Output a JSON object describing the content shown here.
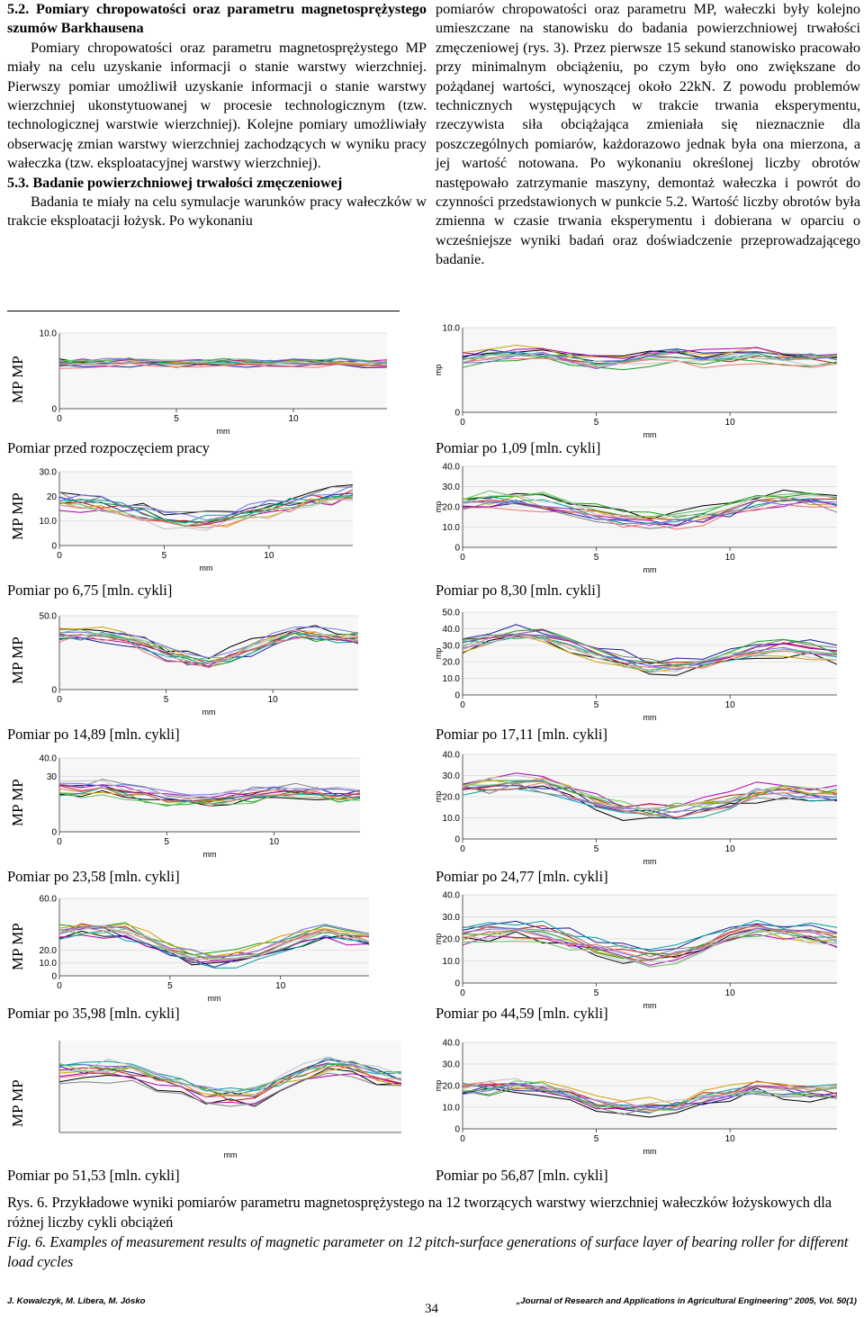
{
  "section_heading": "5.2. Pomiary chropowatości oraz parametru magnetosprężystego szumów Barkhausena",
  "left_paragraph_1": "Pomiary chropowatości oraz parametru magnetosprężystego MP miały na celu uzyskanie informacji o stanie warstwy wierzchniej. Pierwszy pomiar umożliwił uzyskanie informacji o stanie warstwy wierzchniej ukonstytuowanej w procesie technologicznym (tzw. technologicznej warstwie wierzchniej). Kolejne pomiary umożliwiały obserwację zmian warstwy wierzchniej zachodzących w wyniku pracy wałeczka (tzw. eksploatacyjnej warstwy wierzchniej).",
  "subsection_heading": "5.3. Badanie powierzchniowej trwałości zmęczeniowej",
  "left_paragraph_2": "Badania te miały na celu symulacje warunków pracy wałeczków w trakcie eksploatacji łożysk. Po wykonaniu",
  "right_paragraph": "pomiarów chropowatości oraz parametru MP, wałeczki były kolejno umieszczane na stanowisku do badania powierzchniowej trwałości zmęczeniowej (rys. 3). Przez pierwsze 15 sekund stanowisko pracowało przy minimalnym obciążeniu, po czym było ono zwiększane do pożądanej wartości, wynoszącej około 22kN. Z powodu problemów technicznych występujących w trakcie trwania eksperymentu, rzeczywista siła obciążająca zmieniała się nieznacznie dla poszczególnych pomiarów, każdorazowo jednak była ona mierzona, a jej wartość notowana. Po wykonaniu określonej liczby obrotów następowało zatrzymanie maszyny, demontaż wałeczka i powrót do czynności przedstawionych w punkcie 5.2. Wartość liczby obrotów była zmienna w czasie trwania eksperymentu i dobierana w oparciu o wcześniejsze wyniki badań oraz doświadczenie przeprowadzającego badanie.",
  "mp_label": "MP",
  "axis_xlabel": "mm",
  "axis_ylabel": "mp",
  "charts": [
    {
      "caption": "Pomiar przed rozpoczęciem pracy",
      "ymax": 10,
      "yticks": [
        "10.0",
        "0"
      ],
      "xticks": [
        "0",
        "5",
        "10"
      ],
      "mp_left": "MP MP"
    },
    {
      "caption": "Pomiar po 1,09 [mln. cykli]",
      "ymax": 10,
      "yticks": [
        "10.0",
        "0"
      ],
      "xticks": [
        "0",
        "5",
        "10"
      ],
      "mp_left": ""
    },
    {
      "caption": "Pomiar po 6,75 [mln. cykli]",
      "ymax": 30,
      "yticks": [
        "30.0",
        "20",
        "10.0",
        "0"
      ],
      "xticks": [
        "0",
        "5",
        "10"
      ],
      "mp_left": "MP MP"
    },
    {
      "caption": "Pomiar po 8,30 [mln. cykli]",
      "ymax": 40,
      "yticks": [
        "40.0",
        "30.0",
        "20.0",
        "10.0",
        "0"
      ],
      "xticks": [
        "0",
        "5",
        "10"
      ],
      "mp_left": ""
    },
    {
      "caption": "Pomiar po 14,89 [mln. cykli]",
      "ymax": 50,
      "yticks": [
        "50.0",
        "0"
      ],
      "xticks": [
        "0",
        "5",
        "10"
      ],
      "mp_left": "MP MP"
    },
    {
      "caption": "Pomiar po 17,11 [mln. cykli]",
      "ymax": 50,
      "yticks": [
        "50.0",
        "40.0",
        "30.0",
        "20.0",
        "10.0",
        "0"
      ],
      "xticks": [
        "0",
        "5",
        "10"
      ],
      "mp_left": ""
    },
    {
      "caption": "Pomiar po 23,58 [mln. cykli]",
      "ymax": 40,
      "yticks": [
        "40.0",
        "30",
        "0"
      ],
      "xticks": [
        "0",
        "5",
        "10"
      ],
      "mp_left": "MP MP"
    },
    {
      "caption": "Pomiar po 24,77 [mln. cykli]",
      "ymax": 40,
      "yticks": [
        "40.0",
        "30.0",
        "20.0",
        "10.0",
        "0"
      ],
      "xticks": [
        "0",
        "5",
        "10"
      ],
      "mp_left": ""
    },
    {
      "caption": "Pomiar po 35,98  [mln. cykli]",
      "ymax": 60,
      "yticks": [
        "60.0",
        "20.0",
        "10.0",
        "0"
      ],
      "xticks": [
        "0",
        "5",
        "10"
      ],
      "mp_left": "MP MP"
    },
    {
      "caption": "Pomiar po 44,59 [mln. cykli]",
      "ymax": 40,
      "yticks": [
        "40.0",
        "30.0",
        "20.0",
        "10.0",
        "0"
      ],
      "xticks": [
        "0",
        "5",
        "10"
      ],
      "mp_left": ""
    },
    {
      "caption": "Pomiar po 51,53 [mln. cykli]",
      "ymax": 40,
      "yticks": [],
      "xticks": [],
      "mp_left": "MP MP"
    },
    {
      "caption": "Pomiar po 56,87 [mln. cykli]",
      "ymax": 40,
      "yticks": [
        "40.0",
        "30.0",
        "20.0",
        "10.0",
        "0"
      ],
      "xticks": [
        "0",
        "5",
        "10"
      ],
      "mp_left": ""
    }
  ],
  "chart_data": [
    {
      "type": "line",
      "title": "Pomiar przed rozpoczęciem pracy",
      "xlabel": "mm",
      "ylabel": "mp",
      "ylim": [
        0,
        10
      ],
      "xlim": [
        0,
        14
      ],
      "x": [
        0,
        1,
        2,
        3,
        4,
        5,
        6,
        7,
        8,
        9,
        10,
        11,
        12,
        13,
        14
      ],
      "series_count": 12,
      "base": [
        6.0,
        6.0,
        6.1,
        6.1,
        6.0,
        6.0,
        6.0,
        6.1,
        6.0,
        6.0,
        6.0,
        6.1,
        6.1,
        6.0,
        6.0
      ],
      "spread": 0.6
    },
    {
      "type": "line",
      "title": "Pomiar po 1,09 [mln. cykli]",
      "xlabel": "mm",
      "ylabel": "mp",
      "ylim": [
        0,
        10
      ],
      "xlim": [
        0,
        14
      ],
      "x": [
        0,
        1,
        2,
        3,
        4,
        5,
        6,
        7,
        8,
        9,
        10,
        11,
        12,
        13,
        14
      ],
      "series_count": 12,
      "base": [
        6.2,
        6.5,
        6.9,
        6.8,
        6.2,
        5.8,
        6.0,
        6.4,
        6.6,
        6.3,
        6.5,
        6.7,
        6.4,
        6.2,
        6.3
      ],
      "spread": 1.0
    },
    {
      "type": "line",
      "title": "Pomiar po 6,75 [mln. cykli]",
      "xlabel": "mm",
      "ylabel": "mp",
      "ylim": [
        0,
        30
      ],
      "xlim": [
        0,
        14
      ],
      "x": [
        0,
        1,
        2,
        3,
        4,
        5,
        6,
        7,
        8,
        9,
        10,
        11,
        12,
        13,
        14
      ],
      "series_count": 12,
      "base": [
        18,
        17,
        16,
        15,
        13,
        11,
        10,
        10,
        11,
        13,
        15,
        17,
        19,
        20,
        21
      ],
      "spread": 4
    },
    {
      "type": "line",
      "title": "Pomiar po 8,30 [mln. cykli]",
      "xlabel": "mm",
      "ylabel": "mp",
      "ylim": [
        0,
        40
      ],
      "xlim": [
        0,
        14
      ],
      "x": [
        0,
        1,
        2,
        3,
        4,
        5,
        6,
        7,
        8,
        9,
        10,
        11,
        12,
        13,
        14
      ],
      "series_count": 12,
      "base": [
        22,
        23,
        23,
        22,
        19,
        16,
        14,
        13,
        13,
        15,
        18,
        22,
        24,
        23,
        22
      ],
      "spread": 5
    },
    {
      "type": "line",
      "title": "Pomiar po 14,89 [mln. cykli]",
      "xlabel": "mm",
      "ylabel": "mp",
      "ylim": [
        0,
        50
      ],
      "xlim": [
        0,
        14
      ],
      "x": [
        0,
        1,
        2,
        3,
        4,
        5,
        6,
        7,
        8,
        9,
        10,
        11,
        12,
        13,
        14
      ],
      "series_count": 12,
      "base": [
        36,
        37,
        37,
        35,
        30,
        24,
        20,
        19,
        22,
        28,
        34,
        38,
        37,
        35,
        34
      ],
      "spread": 6
    },
    {
      "type": "line",
      "title": "Pomiar po 17,11 [mln. cykli]",
      "xlabel": "mm",
      "ylabel": "mp",
      "ylim": [
        0,
        50
      ],
      "xlim": [
        0,
        14
      ],
      "x": [
        0,
        1,
        2,
        3,
        4,
        5,
        6,
        7,
        8,
        9,
        10,
        11,
        12,
        13,
        14
      ],
      "series_count": 12,
      "base": [
        32,
        35,
        37,
        36,
        32,
        26,
        21,
        18,
        18,
        20,
        24,
        28,
        29,
        27,
        25
      ],
      "spread": 6
    },
    {
      "type": "line",
      "title": "Pomiar po 23,58 [mln. cykli]",
      "xlabel": "mm",
      "ylabel": "mp",
      "ylim": [
        0,
        40
      ],
      "xlim": [
        0,
        14
      ],
      "x": [
        0,
        1,
        2,
        3,
        4,
        5,
        6,
        7,
        8,
        9,
        10,
        11,
        12,
        13,
        14
      ],
      "series_count": 12,
      "base": [
        23,
        23,
        24,
        22,
        20,
        18,
        17,
        17,
        18,
        20,
        22,
        22,
        21,
        20,
        20
      ],
      "spread": 4
    },
    {
      "type": "line",
      "title": "Pomiar po 24,77 [mln. cykli]",
      "xlabel": "mm",
      "ylabel": "mp",
      "ylim": [
        0,
        40
      ],
      "xlim": [
        0,
        14
      ],
      "x": [
        0,
        1,
        2,
        3,
        4,
        5,
        6,
        7,
        8,
        9,
        10,
        11,
        12,
        13,
        14
      ],
      "series_count": 12,
      "base": [
        25,
        26,
        27,
        26,
        22,
        17,
        14,
        13,
        13,
        15,
        18,
        22,
        23,
        22,
        21
      ],
      "spread": 5
    },
    {
      "type": "line",
      "title": "Pomiar po 35,98  [mln. cykli]",
      "xlabel": "mm",
      "ylabel": "mp",
      "ylim": [
        0,
        60
      ],
      "xlim": [
        0,
        14
      ],
      "x": [
        0,
        1,
        2,
        3,
        4,
        5,
        6,
        7,
        8,
        9,
        10,
        11,
        12,
        13,
        14
      ],
      "series_count": 12,
      "base": [
        34,
        36,
        37,
        35,
        28,
        20,
        15,
        13,
        14,
        18,
        24,
        30,
        33,
        32,
        30
      ],
      "spread": 7
    },
    {
      "type": "line",
      "title": "Pomiar po 44,59 [mln. cykli]",
      "xlabel": "mm",
      "ylabel": "mp",
      "ylim": [
        0,
        40
      ],
      "xlim": [
        0,
        14
      ],
      "x": [
        0,
        1,
        2,
        3,
        4,
        5,
        6,
        7,
        8,
        9,
        10,
        11,
        12,
        13,
        14
      ],
      "series_count": 12,
      "base": [
        22,
        23,
        24,
        23,
        20,
        16,
        13,
        12,
        13,
        17,
        22,
        25,
        24,
        22,
        21
      ],
      "spread": 5
    },
    {
      "type": "line",
      "title": "Pomiar po 51,53 [mln. cykli]",
      "xlabel": "mm",
      "ylabel": "mp",
      "ylim": [
        0,
        40
      ],
      "xlim": [
        0,
        14
      ],
      "x": [
        0,
        1,
        2,
        3,
        4,
        5,
        6,
        7,
        8,
        9,
        10,
        11,
        12,
        13,
        14
      ],
      "series_count": 12,
      "base": [
        26,
        26,
        27,
        26,
        23,
        19,
        16,
        15,
        16,
        20,
        25,
        28,
        27,
        24,
        22
      ],
      "spread": 5
    },
    {
      "type": "line",
      "title": "Pomiar po 56,87 [mln. cykli]",
      "xlabel": "mm",
      "ylabel": "mp",
      "ylim": [
        0,
        40
      ],
      "xlim": [
        0,
        14
      ],
      "x": [
        0,
        1,
        2,
        3,
        4,
        5,
        6,
        7,
        8,
        9,
        10,
        11,
        12,
        13,
        14
      ],
      "series_count": 12,
      "base": [
        18,
        19,
        20,
        19,
        16,
        12,
        10,
        10,
        11,
        14,
        17,
        19,
        18,
        17,
        17
      ],
      "spread": 5
    }
  ],
  "series_colors": [
    "#000000",
    "#1a1aa0",
    "#c01818",
    "#18a018",
    "#d0a000",
    "#b000b0",
    "#00a0a0",
    "#808080",
    "#f07070",
    "#7070f0",
    "#60c060",
    "#c0c0c0"
  ],
  "figure_caption_pl_label": "Rys. 6.",
  "figure_caption_pl": "Przykładowe wyniki pomiarów parametru magnetosprężystego na 12 tworzących warstwy wierzchniej wałeczków łożyskowych dla różnej liczby cykli obciążeń",
  "figure_caption_en_label": "Fig. 6.",
  "figure_caption_en": "Examples of measurement results of magnetic parameter on 12 pitch-surface generations of surface layer of bearing roller for different load cycles",
  "footer_authors": "J. Kowalczyk, M. Libera, M. Jósko",
  "page_number": "34",
  "footer_journal": "„Journal of Research and Applications in Agricultural Engineering” 2005, Vol. 50(1)"
}
